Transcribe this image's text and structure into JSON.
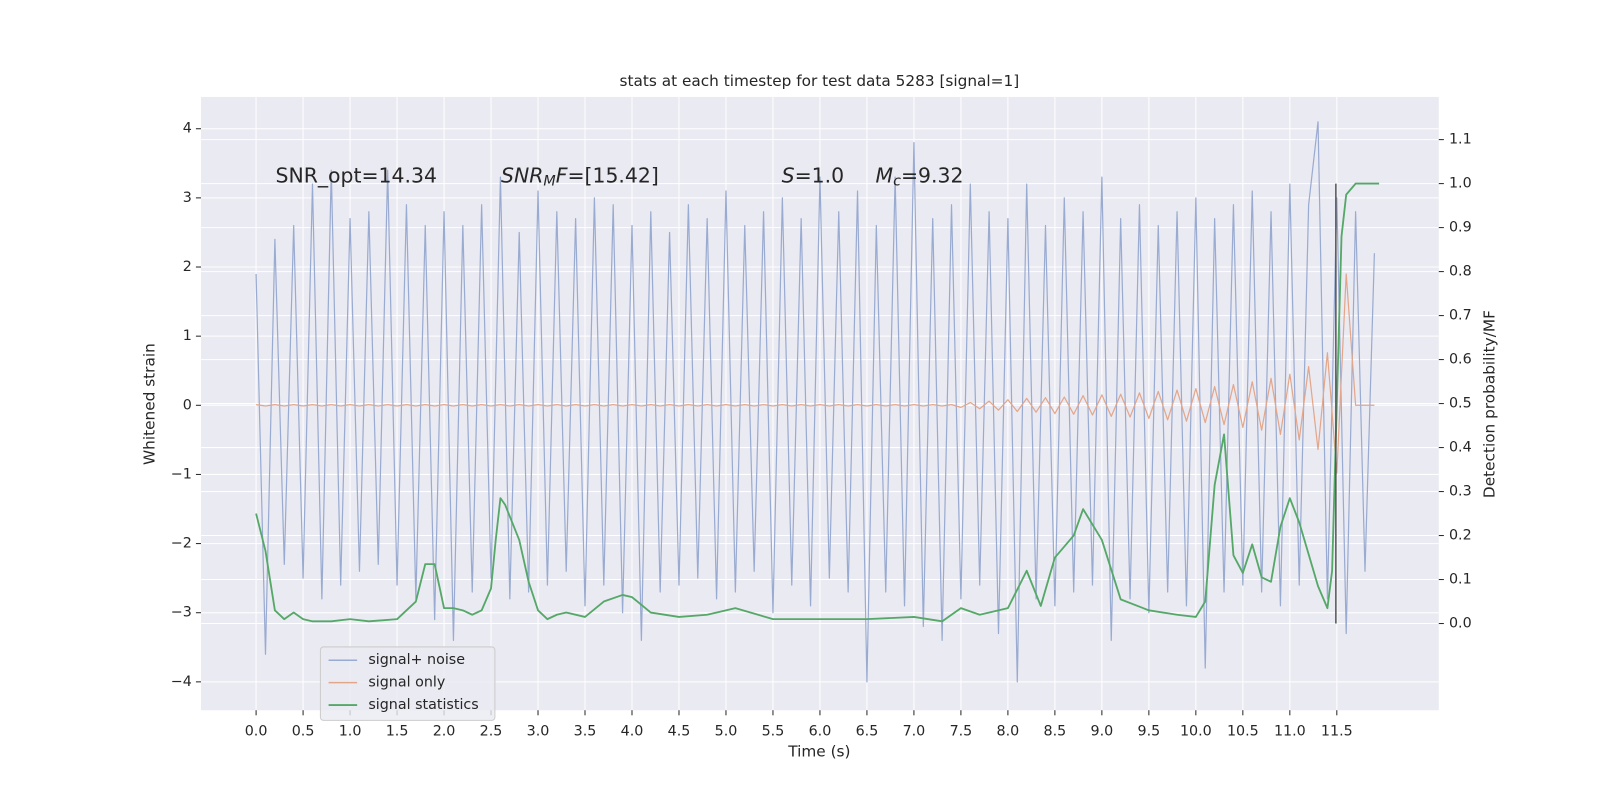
{
  "chart_data": {
    "type": "line",
    "title": "stats at each timestep for test data 5283 [signal=1]",
    "xlabel": "Time (s)",
    "ylabel": "Whitened strain",
    "y2label": "Detection probability/MF",
    "annotations": [
      [
        {
          "text": "SNR_opt=14.34"
        }
      ],
      [
        {
          "text": "SNR",
          "style": "italic"
        },
        {
          "text": "M",
          "style": "italic-sub"
        },
        {
          "text": "F",
          "style": "italic"
        },
        {
          "text": "=[15.42]"
        }
      ],
      [
        {
          "text": "S",
          "style": "italic"
        },
        {
          "text": "=1.0"
        }
      ],
      [
        {
          "text": "M",
          "style": "italic"
        },
        {
          "text": "c",
          "style": "italic-sub"
        },
        {
          "text": "=9.32"
        }
      ]
    ],
    "x": [
      0,
      0.1,
      0.2,
      0.3,
      0.4,
      0.5,
      0.6,
      0.7,
      0.8,
      0.9,
      1.0,
      1.1,
      1.2,
      1.3,
      1.4,
      1.5,
      1.6,
      1.7,
      1.8,
      1.9,
      2.0,
      2.1,
      2.2,
      2.3,
      2.4,
      2.5,
      2.6,
      2.7,
      2.8,
      2.9,
      3.0,
      3.1,
      3.2,
      3.3,
      3.4,
      3.5,
      3.6,
      3.7,
      3.8,
      3.9,
      4.0,
      4.1,
      4.2,
      4.3,
      4.4,
      4.5,
      4.6,
      4.7,
      4.8,
      4.9,
      5.0,
      5.1,
      5.2,
      5.3,
      5.4,
      5.5,
      5.6,
      5.7,
      5.8,
      5.9,
      6.0,
      6.1,
      6.2,
      6.3,
      6.4,
      6.5,
      6.6,
      6.7,
      6.8,
      6.9,
      7.0,
      7.1,
      7.2,
      7.3,
      7.4,
      7.5,
      7.6,
      7.7,
      7.8,
      7.9,
      8.0,
      8.1,
      8.2,
      8.3,
      8.4,
      8.5,
      8.6,
      8.7,
      8.8,
      8.9,
      9.0,
      9.1,
      9.2,
      9.3,
      9.4,
      9.5,
      9.6,
      9.7,
      9.8,
      9.9,
      10.0,
      10.1,
      10.2,
      10.3,
      10.4,
      10.5,
      10.6,
      10.7,
      10.8,
      10.9,
      11.0,
      11.1,
      11.2,
      11.3,
      11.4,
      11.5,
      11.6,
      11.7,
      11.8,
      11.9
    ],
    "series": [
      {
        "name": "signal+ noise",
        "color": "#9aabd1",
        "values": [
          1.9,
          -3.6,
          2.4,
          -2.3,
          2.6,
          -2.5,
          3.2,
          -2.8,
          3.4,
          -2.6,
          2.7,
          -2.4,
          2.8,
          -2.3,
          3.4,
          -2.6,
          2.9,
          -2.8,
          2.6,
          -3.1,
          2.8,
          -3.4,
          2.6,
          -2.7,
          2.9,
          -2.5,
          3.3,
          -2.8,
          2.5,
          -2.7,
          3.1,
          -2.6,
          2.8,
          -2.4,
          2.7,
          -2.9,
          3.0,
          -2.6,
          2.9,
          -3.0,
          2.6,
          -3.4,
          2.8,
          -2.7,
          2.5,
          -2.6,
          2.9,
          -2.5,
          2.7,
          -2.8,
          3.1,
          -2.7,
          2.6,
          -2.4,
          2.8,
          -3.0,
          3.0,
          -2.6,
          2.7,
          -2.9,
          3.3,
          -2.5,
          2.8,
          -2.7,
          3.1,
          -4.0,
          2.6,
          -2.7,
          3.3,
          -2.9,
          3.8,
          -3.2,
          2.7,
          -3.4,
          2.9,
          -2.8,
          3.2,
          -2.6,
          2.8,
          -3.3,
          2.7,
          -4.0,
          3.2,
          -2.8,
          2.6,
          -2.9,
          3.0,
          -2.7,
          2.8,
          -2.6,
          3.3,
          -3.4,
          2.7,
          -2.8,
          2.9,
          -3.0,
          2.6,
          -2.7,
          2.8,
          -2.9,
          3.0,
          -3.8,
          2.7,
          -2.7,
          2.9,
          -2.6,
          3.1,
          -2.7,
          2.8,
          -2.9,
          3.2,
          -2.6,
          2.9,
          4.1,
          -2.8,
          3.0,
          -3.3,
          2.8,
          -2.4,
          2.2
        ]
      },
      {
        "name": "signal only",
        "color": "#e3a68a",
        "values": [
          0.01,
          -0.01,
          0.01,
          -0.01,
          0.01,
          -0.01,
          0.01,
          -0.01,
          0.01,
          -0.01,
          0.01,
          -0.01,
          0.01,
          -0.01,
          0.01,
          -0.01,
          0.01,
          -0.01,
          0.01,
          -0.01,
          0.01,
          -0.01,
          0.01,
          -0.01,
          0.01,
          -0.01,
          0.01,
          -0.01,
          0.01,
          -0.01,
          0.01,
          -0.01,
          0.01,
          -0.01,
          0.01,
          -0.01,
          0.01,
          -0.01,
          0.01,
          -0.01,
          0.01,
          -0.01,
          0.01,
          -0.01,
          0.01,
          -0.01,
          0.01,
          -0.01,
          0.01,
          -0.01,
          0.01,
          -0.01,
          0.01,
          -0.01,
          0.01,
          -0.01,
          0.01,
          -0.01,
          0.01,
          -0.01,
          0.01,
          -0.01,
          0.01,
          -0.01,
          0.01,
          -0.01,
          0.01,
          -0.01,
          0.01,
          -0.01,
          0.01,
          -0.01,
          0.01,
          -0.01,
          0.01,
          -0.03,
          0.04,
          -0.05,
          0.06,
          -0.07,
          0.08,
          -0.09,
          0.1,
          -0.1,
          0.11,
          -0.12,
          0.12,
          -0.13,
          0.14,
          -0.14,
          0.15,
          -0.16,
          0.16,
          -0.17,
          0.18,
          -0.19,
          0.2,
          -0.21,
          0.22,
          -0.23,
          0.24,
          -0.25,
          0.27,
          -0.28,
          0.3,
          -0.32,
          0.34,
          -0.36,
          0.39,
          -0.42,
          0.45,
          -0.5,
          0.56,
          -0.64,
          0.76,
          -0.98,
          1.9,
          0,
          0,
          0
        ]
      },
      {
        "name": "signal statistics",
        "color": "#55a868",
        "axis": "y2",
        "x": [
          0,
          0.1,
          0.2,
          0.3,
          0.4,
          0.5,
          0.6,
          0.8,
          1.0,
          1.2,
          1.5,
          1.7,
          1.8,
          1.9,
          2.0,
          2.1,
          2.2,
          2.3,
          2.4,
          2.5,
          2.55,
          2.6,
          2.65,
          2.8,
          2.9,
          3.0,
          3.1,
          3.2,
          3.3,
          3.5,
          3.7,
          3.9,
          4.0,
          4.2,
          4.5,
          4.8,
          5.1,
          5.5,
          6.0,
          6.5,
          7.0,
          7.3,
          7.5,
          7.7,
          8.0,
          8.2,
          8.35,
          8.5,
          8.7,
          8.8,
          9.0,
          9.2,
          9.5,
          9.8,
          10.0,
          10.1,
          10.2,
          10.3,
          10.4,
          10.5,
          10.6,
          10.7,
          10.8,
          10.9,
          11.0,
          11.1,
          11.3,
          11.4,
          11.45,
          11.55,
          11.6,
          11.7,
          11.95
        ],
        "values": [
          0.25,
          0.165,
          0.03,
          0.01,
          0.025,
          0.01,
          0.005,
          0.005,
          0.01,
          0.005,
          0.01,
          0.05,
          0.135,
          0.135,
          0.035,
          0.035,
          0.03,
          0.02,
          0.03,
          0.08,
          0.19,
          0.285,
          0.27,
          0.19,
          0.095,
          0.03,
          0.01,
          0.02,
          0.025,
          0.015,
          0.05,
          0.065,
          0.06,
          0.025,
          0.015,
          0.02,
          0.035,
          0.01,
          0.01,
          0.01,
          0.015,
          0.005,
          0.035,
          0.02,
          0.035,
          0.12,
          0.04,
          0.15,
          0.2,
          0.26,
          0.19,
          0.055,
          0.03,
          0.02,
          0.015,
          0.05,
          0.315,
          0.43,
          0.155,
          0.115,
          0.18,
          0.105,
          0.095,
          0.22,
          0.285,
          0.23,
          0.085,
          0.035,
          0.12,
          0.88,
          0.975,
          1.0,
          1.0
        ]
      }
    ],
    "marker_line": {
      "x": 11.49,
      "ymin": 0,
      "ymax": 1,
      "axis": "y2",
      "color": "#555555"
    },
    "xlim": [
      -0.586,
      12.585
    ],
    "xticks": [
      {
        "value": 0,
        "label": "0.0"
      },
      0.5,
      {
        "value": 1,
        "label": "1.0"
      },
      1.5,
      {
        "value": 2,
        "label": "2.0"
      },
      2.5,
      {
        "value": 3,
        "label": "3.0"
      },
      3.5,
      {
        "value": 4,
        "label": "4.0"
      },
      4.5,
      {
        "value": 5,
        "label": "5.0"
      },
      5.5,
      {
        "value": 6,
        "label": "6.0"
      },
      6.5,
      {
        "value": 7,
        "label": "7.0"
      },
      7.5,
      {
        "value": 8,
        "label": "8.0"
      },
      8.5,
      {
        "value": 9,
        "label": "9.0"
      },
      9.5,
      {
        "value": 10,
        "label": "10.0"
      },
      10.5,
      {
        "value": 11,
        "label": "11.0"
      },
      11.5
    ],
    "ylim": [
      -4.41,
      4.46
    ],
    "yticks": [
      {
        "value": -4,
        "label": "−4"
      },
      {
        "value": -3,
        "label": "−3"
      },
      {
        "value": -2,
        "label": "−2"
      },
      {
        "value": -1,
        "label": "−1"
      },
      0,
      1,
      2,
      3,
      4
    ],
    "y2lim": [
      -0.197,
      1.197
    ],
    "y2ticks": [
      {
        "value": 0,
        "label": "0.0"
      },
      0.1,
      0.2,
      0.3,
      0.4,
      0.5,
      0.6,
      0.7,
      0.8,
      0.9,
      {
        "value": 1,
        "label": "1.0"
      },
      1.1
    ],
    "grid": true,
    "legend": "lower left",
    "background": "#eaeaf2"
  }
}
